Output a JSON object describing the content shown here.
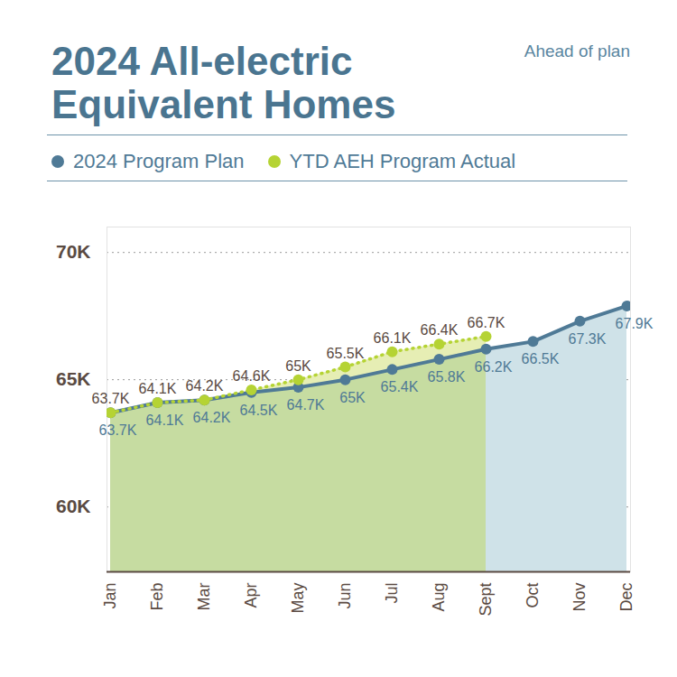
{
  "chart_data": {
    "type": "line",
    "title": "2024 All-electric Equivalent Homes",
    "annotation": "Ahead of plan",
    "categories": [
      "Jan",
      "Feb",
      "Mar",
      "Apr",
      "May",
      "Jun",
      "Jul",
      "Aug",
      "Sept",
      "Oct",
      "Nov",
      "Dec"
    ],
    "series": [
      {
        "name": "2024 Program Plan",
        "color": "#4f7a96",
        "marker": "circle",
        "line_style": "solid",
        "values": [
          63700,
          64100,
          64200,
          64500,
          64700,
          65000,
          65400,
          65800,
          66200,
          66500,
          67300,
          67900
        ],
        "value_labels": [
          "63.7K",
          "64.1K",
          "64.2K",
          "64.5K",
          "64.7K",
          "65K",
          "65.4K",
          "65.8K",
          "66.2K",
          "66.5K",
          "67.3K",
          "67.9K"
        ]
      },
      {
        "name": "YTD AEH Program Actual",
        "color": "#b5d334",
        "marker": "circle",
        "line_style": "dotted",
        "values": [
          63700,
          64100,
          64200,
          64600,
          65000,
          65500,
          66100,
          66400,
          66700,
          null,
          null,
          null
        ],
        "value_labels": [
          "63.7K",
          "64.1K",
          "64.2K",
          "64.6K",
          "65K",
          "65.5K",
          "66.1K",
          "66.4K",
          "66.7K",
          null,
          null,
          null
        ]
      }
    ],
    "ylim": [
      57450,
      71000
    ],
    "yticks": [
      {
        "value": 60000,
        "label": "60K"
      },
      {
        "value": 65000,
        "label": "65K"
      },
      {
        "value": 70000,
        "label": "70K"
      }
    ],
    "grid": true,
    "data_labels": true,
    "legend": "top"
  }
}
